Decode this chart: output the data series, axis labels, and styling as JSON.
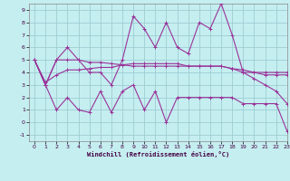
{
  "xlabel": "Windchill (Refroidissement éolien,°C)",
  "xlim": [
    -0.5,
    23
  ],
  "ylim": [
    -1.5,
    9.5
  ],
  "xtick_labels": [
    "0",
    "1",
    "2",
    "3",
    "4",
    "5",
    "6",
    "7",
    "8",
    "9",
    "10",
    "11",
    "12",
    "13",
    "14",
    "15",
    "16",
    "17",
    "18",
    "19",
    "20",
    "21",
    "22",
    "23"
  ],
  "ytick_labels": [
    "-1",
    "0",
    "1",
    "2",
    "3",
    "4",
    "5",
    "6",
    "7",
    "8",
    "9"
  ],
  "ytick_vals": [
    -1,
    0,
    1,
    2,
    3,
    4,
    5,
    6,
    7,
    8,
    9
  ],
  "background_color": "#c5eef0",
  "grid_color": "#9ecdd4",
  "line_color": "#993399",
  "lines": [
    [
      5,
      3,
      5,
      6,
      5,
      4,
      4,
      3,
      5,
      8.5,
      7.5,
      6,
      8,
      6,
      5.5,
      8,
      7.5,
      9.5,
      7,
      4,
      4,
      4,
      4,
      4
    ],
    [
      5,
      3.2,
      3.8,
      4.2,
      4.2,
      4.3,
      4.4,
      4.4,
      4.6,
      4.7,
      4.7,
      4.7,
      4.7,
      4.7,
      4.5,
      4.5,
      4.5,
      4.5,
      4.3,
      4.2,
      4.0,
      3.8,
      3.8,
      3.8
    ],
    [
      5,
      3,
      5,
      5,
      5,
      4.8,
      4.8,
      4.7,
      4.6,
      4.5,
      4.5,
      4.5,
      4.5,
      4.5,
      4.5,
      4.5,
      4.5,
      4.5,
      4.3,
      4.0,
      3.5,
      3.0,
      2.5,
      1.5
    ],
    [
      5,
      3,
      1,
      2,
      1,
      0.8,
      2.5,
      0.8,
      2.5,
      3,
      1,
      2.5,
      0.0,
      2,
      2,
      2,
      2,
      2,
      2,
      1.5,
      1.5,
      1.5,
      1.5,
      -0.7
    ]
  ]
}
